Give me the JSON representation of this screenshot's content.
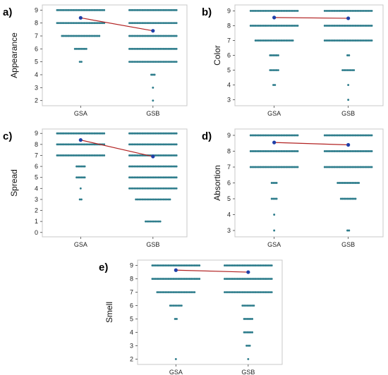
{
  "colors": {
    "dot": "#2e7d8c",
    "mean_line": "#b22222",
    "mean_point": "#1f3fa8",
    "frame": "#c8c8c8"
  },
  "chart_data": [
    {
      "type": "scatter",
      "panel": "a)",
      "ylabel": "Appearance",
      "categories": [
        "GSA",
        "GSB"
      ],
      "ylim": [
        2,
        9
      ],
      "yticks": [
        2,
        3,
        4,
        5,
        6,
        7,
        8,
        9
      ],
      "means": [
        8.4,
        7.4
      ],
      "counts": {
        "GSA": {
          "9": 30,
          "8": 30,
          "7": 24,
          "6": 8,
          "5": 2
        },
        "GSB": {
          "9": 30,
          "8": 30,
          "7": 30,
          "6": 30,
          "5": 30,
          "4": 3,
          "3": 1,
          "2": 1
        }
      }
    },
    {
      "type": "scatter",
      "panel": "b)",
      "ylabel": "Color",
      "categories": [
        "GSA",
        "GSB"
      ],
      "ylim": [
        3,
        9
      ],
      "yticks": [
        3,
        4,
        5,
        6,
        7,
        8,
        9
      ],
      "means": [
        8.55,
        8.5
      ],
      "counts": {
        "GSA": {
          "9": 30,
          "8": 30,
          "7": 24,
          "6": 6,
          "5": 6,
          "4": 2
        },
        "GSB": {
          "9": 30,
          "8": 30,
          "7": 30,
          "6": 2,
          "5": 8,
          "4": 1,
          "3": 1
        }
      }
    },
    {
      "type": "scatter",
      "panel": "c)",
      "ylabel": "Spread",
      "categories": [
        "GSA",
        "GSB"
      ],
      "ylim": [
        0,
        9
      ],
      "yticks": [
        0,
        1,
        2,
        3,
        4,
        5,
        6,
        7,
        8,
        9
      ],
      "means": [
        8.4,
        6.9
      ],
      "counts": {
        "GSA": {
          "9": 30,
          "8": 30,
          "7": 30,
          "6": 6,
          "5": 6,
          "4": 1,
          "3": 2
        },
        "GSB": {
          "9": 30,
          "8": 30,
          "7": 30,
          "6": 30,
          "5": 30,
          "4": 30,
          "3": 22,
          "1": 10
        }
      }
    },
    {
      "type": "scatter",
      "panel": "d)",
      "ylabel": "Absortion",
      "categories": [
        "GSA",
        "GSB"
      ],
      "ylim": [
        3,
        9
      ],
      "yticks": [
        3,
        4,
        5,
        6,
        7,
        8,
        9
      ],
      "means": [
        8.55,
        8.4
      ],
      "counts": {
        "GSA": {
          "9": 30,
          "8": 30,
          "7": 30,
          "6": 4,
          "5": 4,
          "4": 1,
          "3": 1
        },
        "GSB": {
          "9": 30,
          "8": 30,
          "7": 30,
          "6": 14,
          "5": 10,
          "3": 2
        }
      }
    },
    {
      "type": "scatter",
      "panel": "e)",
      "ylabel": "Smell",
      "categories": [
        "GSA",
        "GSB"
      ],
      "ylim": [
        2,
        9
      ],
      "yticks": [
        2,
        3,
        4,
        5,
        6,
        7,
        8,
        9
      ],
      "means": [
        8.65,
        8.5
      ],
      "counts": {
        "GSA": {
          "9": 30,
          "8": 30,
          "7": 24,
          "6": 8,
          "5": 2,
          "2": 1
        },
        "GSB": {
          "9": 30,
          "8": 30,
          "7": 30,
          "6": 8,
          "5": 6,
          "4": 6,
          "3": 3,
          "2": 1
        }
      }
    }
  ]
}
